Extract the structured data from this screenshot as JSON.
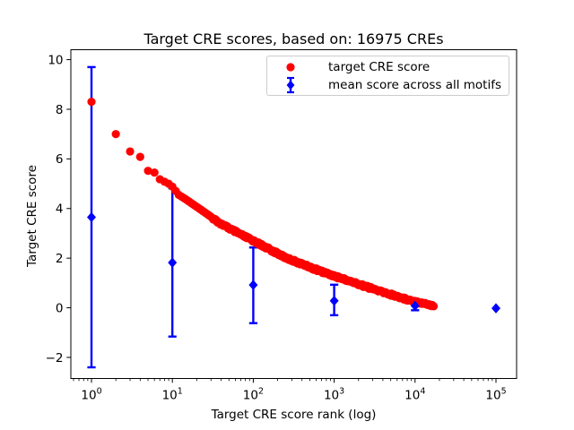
{
  "figure": {
    "background": "#ffffff",
    "spine_color": "#000000",
    "legend_border_color": "#cccccc"
  },
  "chart_data": {
    "type": "scatter",
    "title": "Target CRE scores, based on: 16975 CREs",
    "xlabel": "Target CRE score rank (log)",
    "ylabel": "Target CRE score",
    "x_scale": "log",
    "xlim_log10": [
      -0.255,
      5.255
    ],
    "ylim": [
      -2.85,
      10.4
    ],
    "xtick_exponents": [
      0,
      1,
      2,
      3,
      4,
      5
    ],
    "yticks": [
      -2,
      0,
      2,
      4,
      6,
      8,
      10
    ],
    "grid": false,
    "n_cres": 16975,
    "legend": {
      "position": "upper right",
      "entries": [
        {
          "label": "target CRE score",
          "marker": "circle",
          "color": "#ff0000"
        },
        {
          "label": "mean score across all motifs",
          "marker": "diamond-errorbar",
          "color": "#0000ff"
        }
      ]
    },
    "series": [
      {
        "name": "target CRE score",
        "type": "scatter",
        "marker": "circle",
        "color": "#ff0000",
        "n_points": 16975,
        "profile": [
          [
            1,
            8.3
          ],
          [
            2,
            7.0
          ],
          [
            3,
            6.3
          ],
          [
            4,
            6.08
          ],
          [
            5,
            5.52
          ],
          [
            6,
            5.45
          ],
          [
            7,
            5.18
          ],
          [
            8,
            5.08
          ],
          [
            9,
            5.0
          ],
          [
            10,
            4.88
          ],
          [
            12,
            4.55
          ],
          [
            15,
            4.35
          ],
          [
            19,
            4.12
          ],
          [
            25,
            3.85
          ],
          [
            40,
            3.38
          ],
          [
            70,
            2.95
          ],
          [
            100,
            2.7
          ],
          [
            250,
            2.02
          ],
          [
            630,
            1.51
          ],
          [
            1500,
            1.09
          ],
          [
            3500,
            0.69
          ],
          [
            8100,
            0.33
          ],
          [
            16000,
            0.1
          ],
          [
            16975,
            0.05
          ]
        ]
      },
      {
        "name": "mean score across all motifs",
        "type": "errorbar",
        "marker": "diamond",
        "color": "#0000ff",
        "points": [
          {
            "rank": 1,
            "mean": 3.65,
            "lo": -2.4,
            "hi": 9.7
          },
          {
            "rank": 10,
            "mean": 1.82,
            "lo": -1.16,
            "hi": 4.82
          },
          {
            "rank": 100,
            "mean": 0.92,
            "lo": -0.62,
            "hi": 2.43
          },
          {
            "rank": 1000,
            "mean": 0.28,
            "lo": -0.3,
            "hi": 0.93
          },
          {
            "rank": 10000,
            "mean": 0.08,
            "lo": -0.1,
            "hi": 0.3
          },
          {
            "rank": 100000,
            "mean": -0.02,
            "lo": -0.02,
            "hi": -0.02
          }
        ]
      }
    ]
  }
}
